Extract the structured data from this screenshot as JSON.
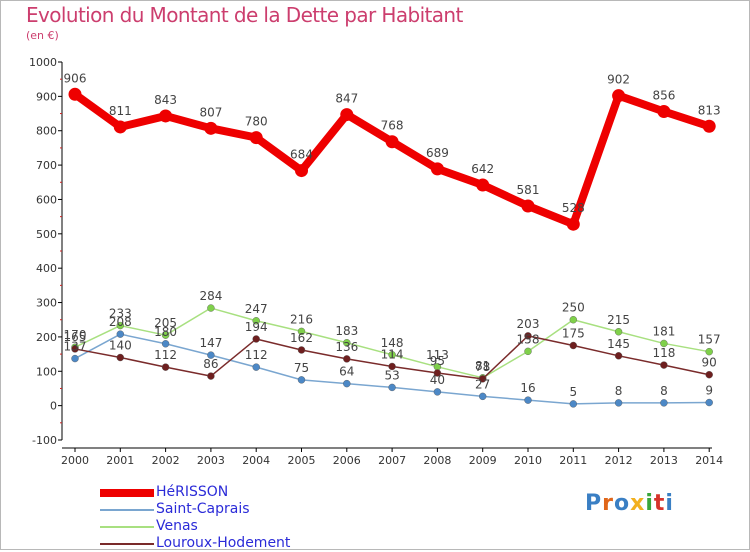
{
  "title": "Evolution du Montant de la Dette par Habitant",
  "unit_label": "(en €)",
  "logo_text": "Proxiti",
  "colors": {
    "title": "#cc3e6e",
    "axis": "#000000",
    "grid": "#c8c8c8",
    "legend_text": "#2b2bd8",
    "value_label": "#444444",
    "logo": [
      "#3a7fc4",
      "#e0661a",
      "#3a7fc4",
      "#f2b01e",
      "#3aa63a",
      "#d6332b",
      "#3a7fc4"
    ]
  },
  "chart_data": {
    "type": "line",
    "title": "Evolution du Montant de la Dette par Habitant",
    "ylabel": "(en €)",
    "x": [
      "2000",
      "2001",
      "2002",
      "2003",
      "2004",
      "2005",
      "2006",
      "2007",
      "2008",
      "2009",
      "2010",
      "2011",
      "2012",
      "2013",
      "2014"
    ],
    "ylim": [
      -100,
      1000
    ],
    "yticks": [
      -100,
      0,
      100,
      200,
      300,
      400,
      500,
      600,
      700,
      800,
      900,
      1000
    ],
    "grid": false,
    "legend_position": "bottom-left",
    "series": [
      {
        "name": "HéRISSON",
        "color": "#ee0000",
        "dot": "#ee0000",
        "width": 8,
        "values": [
          906,
          811,
          843,
          807,
          780,
          684,
          847,
          768,
          689,
          642,
          581,
          528,
          902,
          856,
          813
        ]
      },
      {
        "name": "Saint-Caprais",
        "color": "#7aa6d0",
        "dot": "#4c88c6",
        "width": 1.5,
        "values": [
          137,
          208,
          180,
          147,
          112,
          75,
          64,
          53,
          40,
          27,
          16,
          5,
          8,
          8,
          9
        ]
      },
      {
        "name": "Venas",
        "color": "#a8e080",
        "dot": "#7fd04a",
        "width": 1.5,
        "values": [
          170,
          233,
          205,
          284,
          247,
          216,
          183,
          148,
          113,
          81,
          158,
          250,
          215,
          181,
          157
        ]
      },
      {
        "name": "Louroux-Hodement",
        "color": "#7a2b2b",
        "dot": "#6e1f1f",
        "width": 1.5,
        "values": [
          165,
          140,
          112,
          86,
          194,
          162,
          136,
          114,
          95,
          78,
          203,
          175,
          145,
          118,
          90
        ]
      }
    ]
  }
}
